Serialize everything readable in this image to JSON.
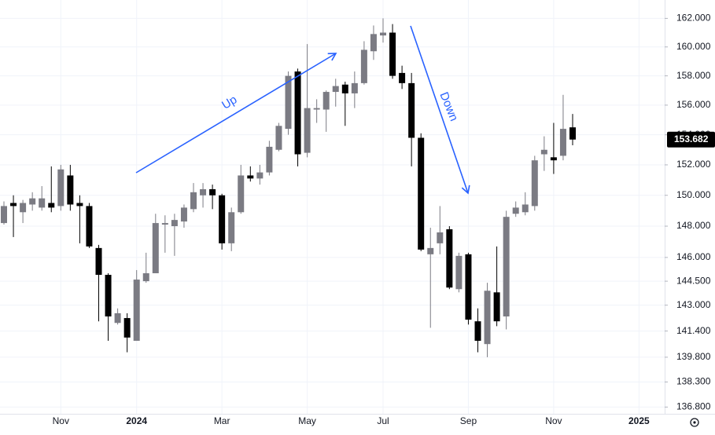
{
  "chart_data": {
    "type": "candlestick",
    "categories": [
      null,
      null,
      null,
      null,
      null,
      null,
      "Nov",
      null,
      null,
      null,
      null,
      null,
      null,
      null,
      "2024",
      null,
      null,
      null,
      null,
      null,
      null,
      null,
      null,
      "Mar",
      null,
      null,
      null,
      null,
      null,
      null,
      null,
      null,
      "May",
      null,
      null,
      null,
      null,
      null,
      null,
      null,
      "Jul",
      null,
      null,
      null,
      null,
      null,
      null,
      null,
      null,
      "Sep",
      null,
      null,
      null,
      null,
      null,
      null,
      null,
      null,
      "Nov",
      null,
      null,
      null,
      null,
      null,
      null,
      null,
      null,
      "2025"
    ],
    "open": [
      148.2,
      149.5,
      148.9,
      149.4,
      149.2,
      149.5,
      149.3,
      151.3,
      149.5,
      149.3,
      146.6,
      144.9,
      141.9,
      142.2,
      140.8,
      144.5,
      145.0,
      148.1,
      148.0,
      148.3,
      149.1,
      150.0,
      150.4,
      150.0,
      146.9,
      148.9,
      151.3,
      151.1,
      151.5,
      153.0,
      154.4,
      158.3,
      152.8,
      155.7,
      155.7,
      156.9,
      157.4,
      156.8,
      157.5,
      159.7,
      160.8,
      161.0,
      158.2,
      157.5,
      153.8,
      146.2,
      146.9,
      147.8,
      144.0,
      146.2,
      142.0,
      140.6,
      143.8,
      142.3,
      148.8,
      148.9,
      149.3,
      152.7,
      152.5,
      152.6,
      154.5,
      null,
      null,
      null,
      null,
      null,
      null,
      null
    ],
    "high": [
      149.6,
      150.0,
      149.7,
      150.2,
      150.6,
      151.9,
      152.0,
      152.0,
      150.0,
      149.5,
      146.8,
      145.0,
      142.8,
      142.5,
      145.2,
      146.3,
      148.8,
      148.7,
      148.8,
      149.4,
      150.8,
      150.8,
      150.7,
      150.1,
      149.2,
      152.0,
      151.9,
      152.0,
      153.6,
      154.8,
      158.3,
      158.5,
      160.2,
      156.4,
      157.0,
      157.8,
      157.6,
      158.3,
      160.4,
      161.5,
      162.0,
      161.6,
      158.7,
      158.2,
      154.1,
      147.9,
      149.3,
      148.0,
      146.3,
      146.3,
      142.8,
      144.4,
      146.7,
      149.0,
      149.6,
      150.2,
      152.6,
      153.9,
      154.8,
      156.7,
      155.4,
      null,
      null,
      null,
      null,
      null,
      null,
      null
    ],
    "low": [
      148.1,
      147.3,
      148.2,
      149.0,
      149.0,
      148.9,
      149.0,
      149.0,
      146.9,
      146.6,
      142.0,
      140.8,
      141.8,
      140.1,
      140.8,
      144.4,
      145.0,
      146.3,
      146.1,
      147.9,
      148.9,
      149.2,
      149.1,
      146.5,
      146.4,
      148.8,
      150.9,
      150.7,
      151.3,
      152.9,
      154.0,
      151.9,
      152.5,
      154.8,
      154.2,
      155.9,
      154.6,
      155.8,
      157.4,
      159.1,
      160.3,
      157.8,
      157.1,
      151.9,
      146.4,
      141.6,
      146.2,
      144.0,
      143.8,
      141.8,
      140.1,
      139.8,
      141.7,
      141.5,
      148.6,
      148.7,
      149.0,
      151.6,
      151.4,
      152.3,
      153.3,
      null,
      null,
      null,
      null,
      null,
      null,
      null
    ],
    "close": [
      149.3,
      149.3,
      149.5,
      149.8,
      149.8,
      149.2,
      151.7,
      149.4,
      149.3,
      146.7,
      144.9,
      142.3,
      142.5,
      141.0,
      144.6,
      145.0,
      148.2,
      148.2,
      148.4,
      149.2,
      150.2,
      150.4,
      150.0,
      146.9,
      148.9,
      151.3,
      151.1,
      151.5,
      153.2,
      154.6,
      158.0,
      152.7,
      155.8,
      155.8,
      156.9,
      157.3,
      156.8,
      157.5,
      159.8,
      160.9,
      161.0,
      158.0,
      157.5,
      153.8,
      146.5,
      146.6,
      147.6,
      144.1,
      146.1,
      142.1,
      140.8,
      143.9,
      142.0,
      148.6,
      149.2,
      149.4,
      152.3,
      153.0,
      152.3,
      154.4,
      153.682,
      null,
      null,
      null,
      null,
      null,
      null,
      null
    ],
    "up_color": "#7b7b83",
    "down_color": "#000000",
    "annotation_color": "#2962ff",
    "yscale": "log",
    "ylim": [
      136.4,
      163.3
    ],
    "yticks": [
      {
        "value": 136.8,
        "label": "136.800"
      },
      {
        "value": 138.3,
        "label": "138.300"
      },
      {
        "value": 139.8,
        "label": "139.800"
      },
      {
        "value": 141.4,
        "label": "141.400"
      },
      {
        "value": 143,
        "label": "143.000"
      },
      {
        "value": 144.5,
        "label": "144.500"
      },
      {
        "value": 146,
        "label": "146.000"
      },
      {
        "value": 148,
        "label": "148.000"
      },
      {
        "value": 150,
        "label": "150.000"
      },
      {
        "value": 152,
        "label": "152.000"
      },
      {
        "value": 154,
        "label": "154.000"
      },
      {
        "value": 156,
        "label": "156.000"
      },
      {
        "value": 158,
        "label": "158.000"
      },
      {
        "value": 160,
        "label": "160.000"
      },
      {
        "value": 162,
        "label": "162.000"
      }
    ],
    "grid": true,
    "annotations": [
      "Up",
      "Down"
    ]
  }
}
